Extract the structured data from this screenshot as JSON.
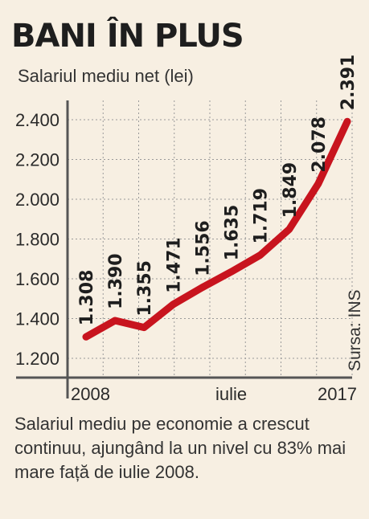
{
  "header": {
    "title": "BANI ÎN PLUS",
    "subtitle": "Salariul mediu net (lei)"
  },
  "caption": "Salariul mediu pe economie a crescut continuu, ajungând la un nivel cu 83% mai mare față de iulie 2008.",
  "source": "Sursa: INS",
  "colors": {
    "background": "#f7efe2",
    "line": "#c8141e",
    "grid": "#9a9a9a",
    "axis": "#555555"
  },
  "chart_data": {
    "type": "line",
    "ylabel": "Salariul mediu net (lei)",
    "ylim": [
      1150,
      2500
    ],
    "yticks": [
      1200,
      1400,
      1600,
      1800,
      2000,
      2200,
      2400
    ],
    "ytick_labels": [
      "1.200",
      "1.400",
      "1.600",
      "1.800",
      "2.000",
      "2.200",
      "2.400"
    ],
    "x_labels": [
      {
        "index": 0,
        "text": "2008"
      },
      {
        "index": 5,
        "text": "iulie"
      },
      {
        "index": 9,
        "text": "2017"
      }
    ],
    "grid": true,
    "series": [
      {
        "values": [
          1308,
          1390,
          1355,
          1471,
          1556,
          1635,
          1719,
          1849,
          2078,
          2391
        ],
        "value_labels": [
          "1.308",
          "1.390",
          "1.355",
          "1.471",
          "1.556",
          "1.635",
          "1.719",
          "1.849",
          "2.078",
          "2.391"
        ]
      }
    ]
  }
}
